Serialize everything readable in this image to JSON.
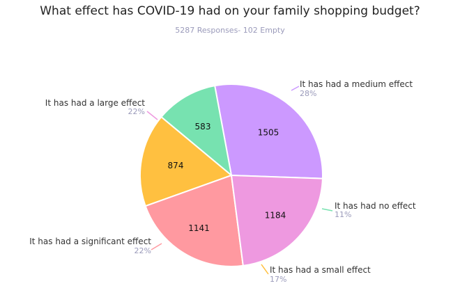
{
  "chart_data": {
    "type": "pie",
    "title": "What effect has COVID-19 had on your family shopping budget?",
    "subtitle": "5287 Responses- 102 Empty",
    "slices": [
      {
        "label": "It has had a medium effect",
        "value": 1505,
        "percent": "28%",
        "color": "#cc99ff"
      },
      {
        "label": "It has had no effect",
        "value": 583,
        "percent": "11%",
        "color": "#77e2b0"
      },
      {
        "label": "It has had a small effect",
        "value": 874,
        "percent": "17%",
        "color": "#ffc040"
      },
      {
        "label": "It has had a significant effect",
        "value": 1141,
        "percent": "22%",
        "color": "#ff99a0"
      },
      {
        "label": "It has had a large effect",
        "value": 1184,
        "percent": "22%",
        "color": "#ee99e0"
      }
    ]
  }
}
